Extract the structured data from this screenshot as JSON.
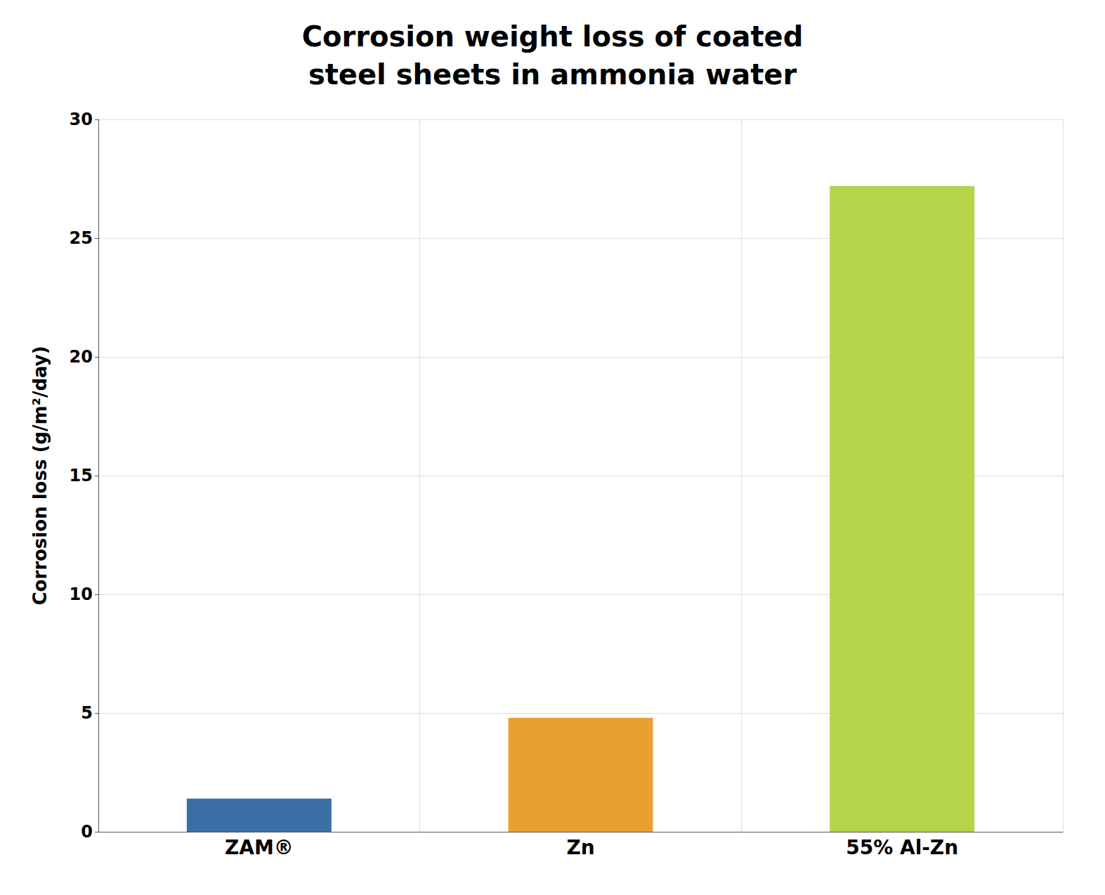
{
  "chart_data": {
    "type": "bar",
    "title": "Corrosion weight loss of coated\nsteel sheets in ammonia water",
    "ylabel": "Corrosion loss (g/m²/day)",
    "categories": [
      "ZAM®",
      "Zn",
      "55% Al-Zn"
    ],
    "values": [
      1.4,
      4.8,
      27.2
    ],
    "colors": [
      "#3a6ea5",
      "#e8a030",
      "#b5d44a"
    ],
    "ylim": [
      0,
      30
    ],
    "yticks": [
      0,
      5,
      10,
      15,
      20,
      25,
      30
    ],
    "grid": true
  }
}
